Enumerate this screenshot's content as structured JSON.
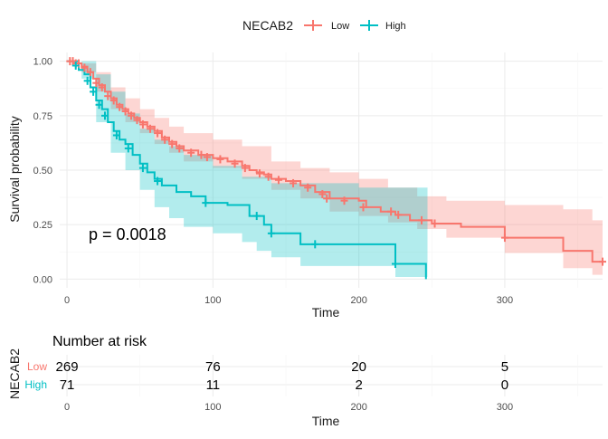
{
  "colors": {
    "low": "#F8766D",
    "high": "#00BFC4"
  },
  "legend": {
    "title": "NECAB2",
    "items": [
      "Low",
      "High"
    ]
  },
  "p_value_label": "p = 0.0018",
  "risk_table": {
    "title": "Number at risk",
    "ylabel": "NECAB2",
    "xlabel": "Time",
    "times": [
      0,
      100,
      200,
      300
    ],
    "tick_labels": [
      "0",
      "100",
      "200",
      "300"
    ],
    "rows": [
      {
        "label": "Low",
        "values": [
          "269",
          "76",
          "20",
          "5"
        ]
      },
      {
        "label": "High",
        "values": [
          "71",
          "11",
          "2",
          "0"
        ]
      }
    ]
  },
  "chart_data": {
    "type": "line",
    "xlabel": "Time",
    "ylabel": "Survival probability",
    "xlim": [
      -5,
      367
    ],
    "ylim": [
      -0.04,
      1.04
    ],
    "x_ticks": [
      0,
      100,
      200,
      300
    ],
    "y_ticks": [
      0,
      0.25,
      0.5,
      0.75,
      1
    ],
    "y_tick_labels": [
      "0.00",
      "0.25",
      "0.50",
      "0.75",
      "1.00"
    ],
    "grid": true,
    "legend_position": "top",
    "series": [
      {
        "name": "Low",
        "step": [
          [
            0,
            1.0
          ],
          [
            6,
            0.99
          ],
          [
            10,
            0.975
          ],
          [
            14,
            0.95
          ],
          [
            18,
            0.92
          ],
          [
            22,
            0.89
          ],
          [
            26,
            0.86
          ],
          [
            30,
            0.83
          ],
          [
            34,
            0.8
          ],
          [
            38,
            0.78
          ],
          [
            42,
            0.76
          ],
          [
            46,
            0.74
          ],
          [
            50,
            0.72
          ],
          [
            55,
            0.7
          ],
          [
            60,
            0.68
          ],
          [
            65,
            0.65
          ],
          [
            70,
            0.63
          ],
          [
            75,
            0.61
          ],
          [
            80,
            0.59
          ],
          [
            90,
            0.57
          ],
          [
            100,
            0.555
          ],
          [
            110,
            0.54
          ],
          [
            120,
            0.52
          ],
          [
            125,
            0.5
          ],
          [
            130,
            0.49
          ],
          [
            135,
            0.48
          ],
          [
            140,
            0.46
          ],
          [
            150,
            0.45
          ],
          [
            160,
            0.43
          ],
          [
            170,
            0.4
          ],
          [
            180,
            0.37
          ],
          [
            200,
            0.36
          ],
          [
            205,
            0.33
          ],
          [
            215,
            0.31
          ],
          [
            225,
            0.295
          ],
          [
            235,
            0.27
          ],
          [
            250,
            0.255
          ],
          [
            270,
            0.24
          ],
          [
            300,
            0.19
          ],
          [
            340,
            0.13
          ],
          [
            360,
            0.08
          ],
          [
            367,
            0.08
          ]
        ],
        "lower": [
          [
            0,
            1.0
          ],
          [
            10,
            0.95
          ],
          [
            20,
            0.86
          ],
          [
            30,
            0.78
          ],
          [
            40,
            0.72
          ],
          [
            50,
            0.67
          ],
          [
            60,
            0.62
          ],
          [
            70,
            0.58
          ],
          [
            80,
            0.54
          ],
          [
            100,
            0.51
          ],
          [
            120,
            0.46
          ],
          [
            140,
            0.41
          ],
          [
            160,
            0.37
          ],
          [
            180,
            0.31
          ],
          [
            200,
            0.29
          ],
          [
            220,
            0.26
          ],
          [
            240,
            0.23
          ],
          [
            260,
            0.19
          ],
          [
            300,
            0.12
          ],
          [
            340,
            0.05
          ],
          [
            360,
            0.02
          ],
          [
            367,
            0.02
          ]
        ],
        "upper": [
          [
            0,
            1.0
          ],
          [
            10,
            0.99
          ],
          [
            20,
            0.95
          ],
          [
            30,
            0.88
          ],
          [
            40,
            0.83
          ],
          [
            50,
            0.78
          ],
          [
            60,
            0.74
          ],
          [
            70,
            0.7
          ],
          [
            80,
            0.67
          ],
          [
            100,
            0.64
          ],
          [
            120,
            0.61
          ],
          [
            140,
            0.54
          ],
          [
            160,
            0.51
          ],
          [
            180,
            0.49
          ],
          [
            200,
            0.46
          ],
          [
            220,
            0.42
          ],
          [
            240,
            0.38
          ],
          [
            260,
            0.36
          ],
          [
            300,
            0.34
          ],
          [
            340,
            0.32
          ],
          [
            360,
            0.27
          ],
          [
            367,
            0.27
          ]
        ],
        "censor": [
          [
            2,
            1.0
          ],
          [
            4,
            1.0
          ],
          [
            6,
            0.99
          ],
          [
            8,
            0.99
          ],
          [
            12,
            0.97
          ],
          [
            16,
            0.95
          ],
          [
            20,
            0.9
          ],
          [
            24,
            0.88
          ],
          [
            28,
            0.84
          ],
          [
            32,
            0.82
          ],
          [
            36,
            0.79
          ],
          [
            40,
            0.77
          ],
          [
            44,
            0.75
          ],
          [
            48,
            0.73
          ],
          [
            52,
            0.71
          ],
          [
            57,
            0.69
          ],
          [
            62,
            0.67
          ],
          [
            67,
            0.64
          ],
          [
            72,
            0.62
          ],
          [
            77,
            0.6
          ],
          [
            85,
            0.58
          ],
          [
            92,
            0.57
          ],
          [
            96,
            0.56
          ],
          [
            105,
            0.55
          ],
          [
            115,
            0.53
          ],
          [
            122,
            0.51
          ],
          [
            132,
            0.485
          ],
          [
            138,
            0.47
          ],
          [
            145,
            0.455
          ],
          [
            155,
            0.44
          ],
          [
            165,
            0.42
          ],
          [
            175,
            0.39
          ],
          [
            178,
            0.37
          ],
          [
            190,
            0.36
          ],
          [
            203,
            0.33
          ],
          [
            222,
            0.31
          ],
          [
            227,
            0.295
          ],
          [
            243,
            0.27
          ],
          [
            252,
            0.255
          ],
          [
            300,
            0.19
          ],
          [
            367,
            0.08
          ]
        ]
      },
      {
        "name": "High",
        "step": [
          [
            0,
            1.0
          ],
          [
            8,
            0.96
          ],
          [
            12,
            0.94
          ],
          [
            16,
            0.88
          ],
          [
            20,
            0.82
          ],
          [
            24,
            0.78
          ],
          [
            28,
            0.72
          ],
          [
            32,
            0.68
          ],
          [
            36,
            0.64
          ],
          [
            40,
            0.62
          ],
          [
            45,
            0.57
          ],
          [
            50,
            0.53
          ],
          [
            55,
            0.49
          ],
          [
            60,
            0.46
          ],
          [
            65,
            0.43
          ],
          [
            75,
            0.4
          ],
          [
            85,
            0.38
          ],
          [
            95,
            0.35
          ],
          [
            110,
            0.34
          ],
          [
            125,
            0.29
          ],
          [
            135,
            0.25
          ],
          [
            140,
            0.21
          ],
          [
            160,
            0.16
          ],
          [
            225,
            0.07
          ],
          [
            246,
            0.06
          ],
          [
            246,
            0.0
          ]
        ],
        "lower": [
          [
            0,
            1.0
          ],
          [
            10,
            0.92
          ],
          [
            20,
            0.72
          ],
          [
            30,
            0.58
          ],
          [
            40,
            0.5
          ],
          [
            50,
            0.41
          ],
          [
            60,
            0.33
          ],
          [
            70,
            0.28
          ],
          [
            80,
            0.24
          ],
          [
            100,
            0.21
          ],
          [
            120,
            0.17
          ],
          [
            130,
            0.13
          ],
          [
            140,
            0.1
          ],
          [
            160,
            0.06
          ],
          [
            225,
            0.01
          ],
          [
            247,
            0.0
          ]
        ],
        "upper": [
          [
            0,
            1.0
          ],
          [
            10,
            1.0
          ],
          [
            20,
            0.94
          ],
          [
            30,
            0.86
          ],
          [
            40,
            0.76
          ],
          [
            50,
            0.69
          ],
          [
            60,
            0.64
          ],
          [
            70,
            0.61
          ],
          [
            80,
            0.57
          ],
          [
            100,
            0.52
          ],
          [
            120,
            0.47
          ],
          [
            140,
            0.44
          ],
          [
            160,
            0.44
          ],
          [
            200,
            0.42
          ],
          [
            225,
            0.42
          ],
          [
            247,
            0.42
          ]
        ],
        "censor": [
          [
            6,
            0.98
          ],
          [
            14,
            0.91
          ],
          [
            18,
            0.86
          ],
          [
            22,
            0.8
          ],
          [
            26,
            0.75
          ],
          [
            34,
            0.66
          ],
          [
            42,
            0.6
          ],
          [
            52,
            0.51
          ],
          [
            62,
            0.45
          ],
          [
            95,
            0.35
          ],
          [
            130,
            0.29
          ],
          [
            140,
            0.21
          ],
          [
            170,
            0.16
          ],
          [
            225,
            0.07
          ]
        ]
      }
    ]
  }
}
